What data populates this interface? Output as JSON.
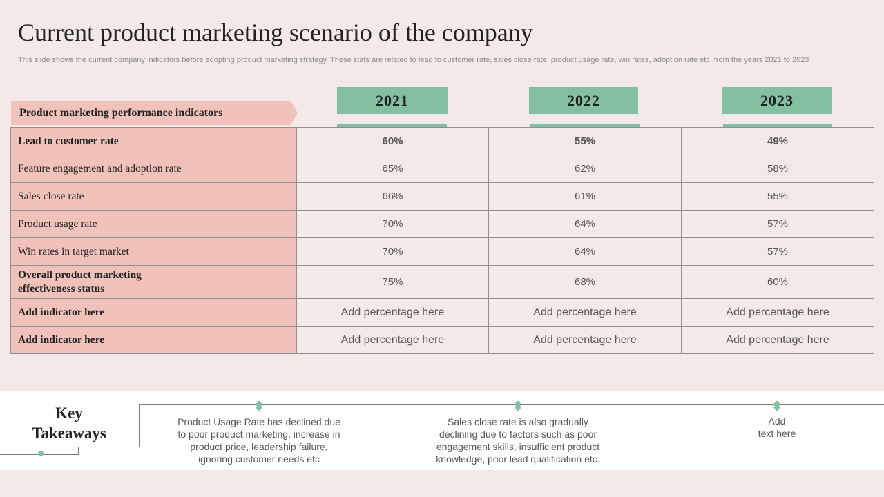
{
  "slide": {
    "title": "Current product marketing scenario of the company",
    "subtitle": "This slide shows the current company indicators before adopting product marketing strategy. These stats are related to lead to  customer rate, sales close rate, product usage rate, win rates, adoption rate etc. from the years 2021 to 2023"
  },
  "table": {
    "header_label": "Product marketing performance indicators",
    "years": [
      "2021",
      "2022",
      "2023"
    ],
    "rows": [
      {
        "label": "Lead to customer rate",
        "values": [
          "60%",
          "55%",
          "49%"
        ]
      },
      {
        "label": "Feature engagement and adoption  rate",
        "values": [
          "65%",
          "62%",
          "58%"
        ]
      },
      {
        "label": "Sales close rate",
        "values": [
          "66%",
          "61%",
          "55%"
        ]
      },
      {
        "label": "Product usage rate",
        "values": [
          "70%",
          "64%",
          "57%"
        ]
      },
      {
        "label": "Win  rates in target market",
        "values": [
          "70%",
          "64%",
          "57%"
        ]
      },
      {
        "label_line1": "Overall product marketing",
        "label_line2": "effectiveness status",
        "values": [
          "75%",
          "68%",
          "60%"
        ]
      },
      {
        "label": "Add indicator here",
        "values": [
          "Add percentage here",
          "Add percentage here",
          "Add percentage here"
        ]
      },
      {
        "label": "Add indicator here",
        "values": [
          "Add percentage here",
          "Add percentage here",
          "Add percentage here"
        ]
      }
    ]
  },
  "takeaways": {
    "title_line1": "Key",
    "title_line2": "Takeaways",
    "items": [
      {
        "line1": "Product Usage Rate has declined due",
        "line2": "to poor product marketing, increase in",
        "line3": "product price, leadership failure,",
        "line4": "ignoring customer needs etc"
      },
      {
        "line1": "Sales close rate is also gradually",
        "line2": "declining due to factors such as poor",
        "line3": "engagement skills, insufficient product",
        "line4": "knowledge, poor lead qualification etc."
      },
      {
        "line1": "Add",
        "line2": "text here"
      }
    ]
  },
  "colors": {
    "accent_green": "#82c0a1",
    "label_pink": "#f1c2b9",
    "background": "#f3e9e6"
  }
}
